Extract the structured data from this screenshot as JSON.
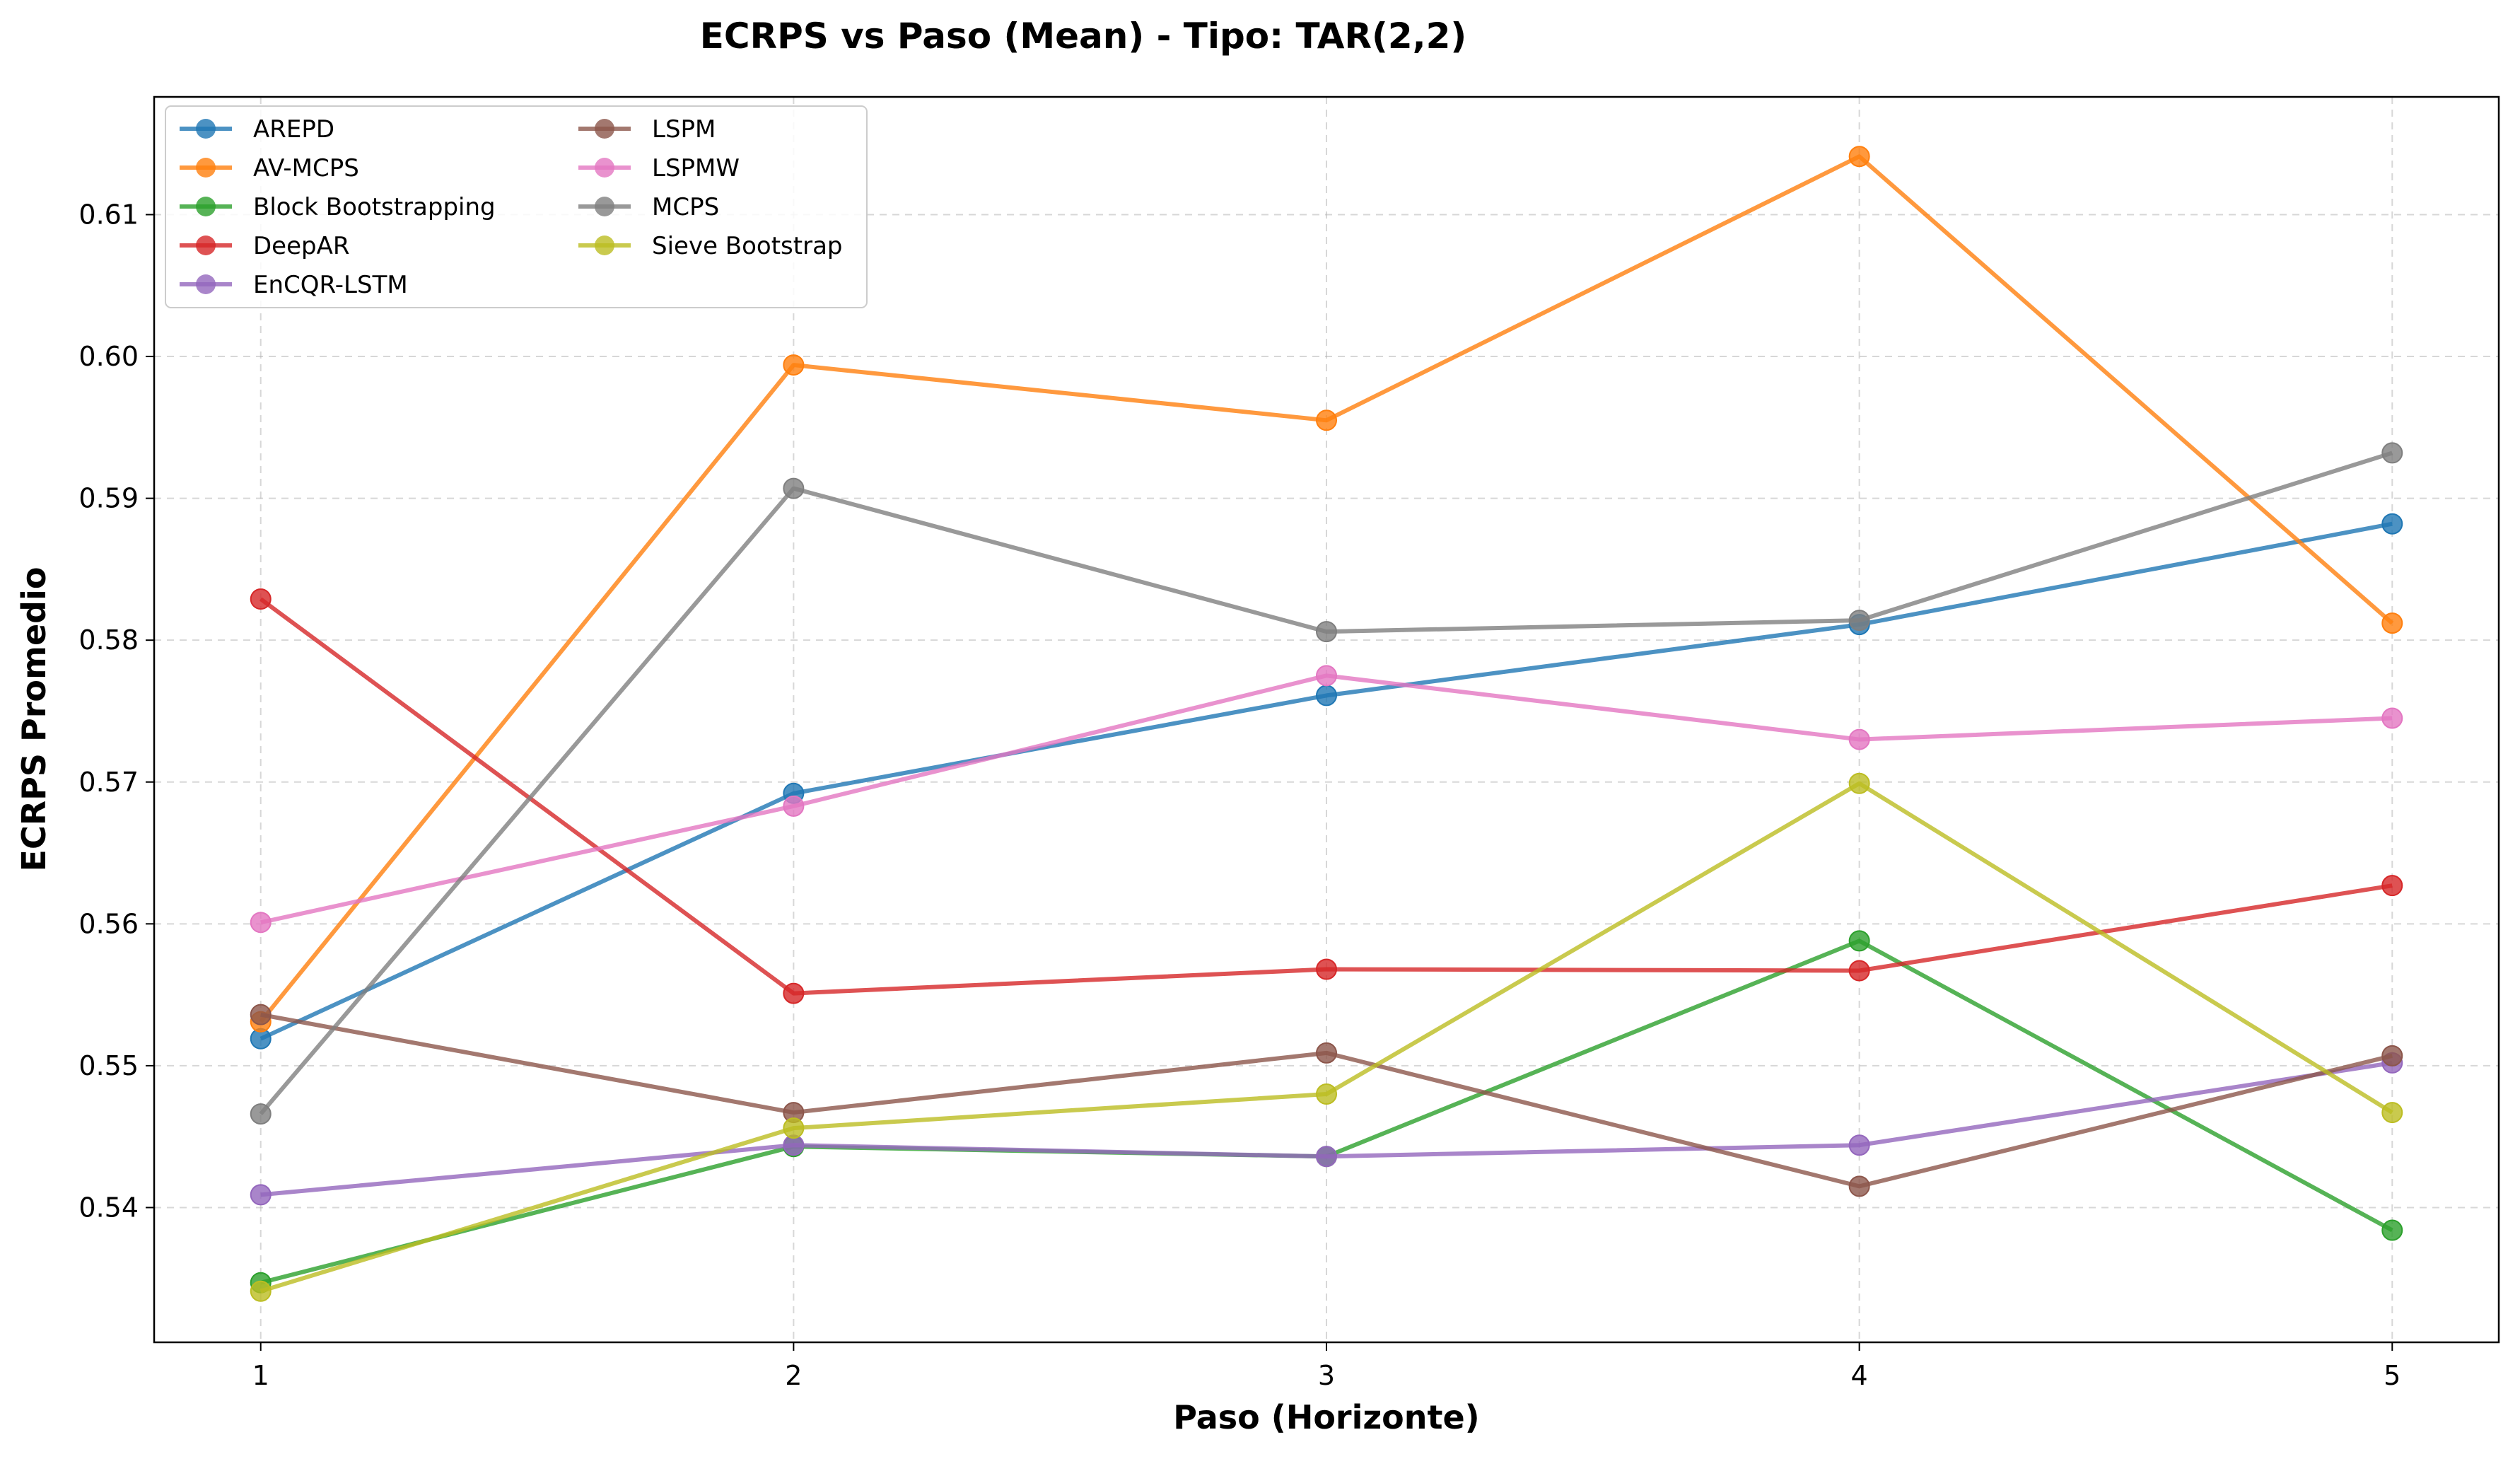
{
  "chart_data": {
    "type": "line",
    "title": "ECRPS vs Paso (Mean) - Tipo: TAR(2,2)",
    "xlabel": "Paso (Horizonte)",
    "ylabel": "ECRPS Promedio",
    "x": [
      1,
      2,
      3,
      4,
      5
    ],
    "x_ticks": [
      "1",
      "2",
      "3",
      "4",
      "5"
    ],
    "xlim": [
      0.8,
      5.2
    ],
    "y_ticks": [
      "0.54",
      "0.55",
      "0.56",
      "0.57",
      "0.58",
      "0.59",
      "0.60",
      "0.61"
    ],
    "ylim": [
      0.5305,
      0.6183
    ],
    "grid": true,
    "legend_placement": "top-left",
    "legend_columns": 2,
    "series": [
      {
        "name": "AREPD",
        "color": "#1f77b4",
        "values": [
          0.5519,
          0.5692,
          0.5761,
          0.5811,
          0.5882
        ]
      },
      {
        "name": "AV-MCPS",
        "color": "#ff7f0e",
        "values": [
          0.5531,
          0.5994,
          0.5955,
          0.6141,
          0.5812
        ]
      },
      {
        "name": "Block Bootstrapping",
        "color": "#2ca02c",
        "values": [
          0.5347,
          0.5443,
          0.5436,
          0.5588,
          0.5384
        ]
      },
      {
        "name": "DeepAR",
        "color": "#d62728",
        "values": [
          0.5829,
          0.5551,
          0.5568,
          0.5567,
          0.5627
        ]
      },
      {
        "name": "EnCQR-LSTM",
        "color": "#9467bd",
        "values": [
          0.5409,
          0.5444,
          0.5436,
          0.5444,
          0.5502
        ]
      },
      {
        "name": "LSPM",
        "color": "#8c564b",
        "values": [
          0.5536,
          0.5467,
          0.5509,
          0.5415,
          0.5507
        ]
      },
      {
        "name": "LSPMW",
        "color": "#e377c2",
        "values": [
          0.5601,
          0.5683,
          0.5775,
          0.573,
          0.5745
        ]
      },
      {
        "name": "MCPS",
        "color": "#7f7f7f",
        "values": [
          0.5466,
          0.5907,
          0.5806,
          0.5814,
          0.5932
        ]
      },
      {
        "name": "Sieve Bootstrap",
        "color": "#bcbd22",
        "values": [
          0.5341,
          0.5456,
          0.548,
          0.5699,
          0.5467
        ]
      }
    ]
  }
}
